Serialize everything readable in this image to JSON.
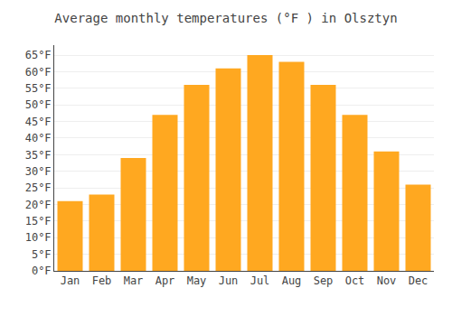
{
  "chart_data": {
    "type": "bar",
    "title": "Average monthly temperatures (°F ) in Olsztyn",
    "categories": [
      "Jan",
      "Feb",
      "Mar",
      "Apr",
      "May",
      "Jun",
      "Jul",
      "Aug",
      "Sep",
      "Oct",
      "Nov",
      "Dec"
    ],
    "values": [
      21,
      23,
      34,
      47,
      56,
      61,
      65,
      63,
      56,
      47,
      36,
      26
    ],
    "color": "#FFA820",
    "ylim": [
      0,
      68
    ],
    "yticks": [
      {
        "value": 0,
        "label": "0°F"
      },
      {
        "value": 5,
        "label": "5°F"
      },
      {
        "value": 10,
        "label": "10°F"
      },
      {
        "value": 15,
        "label": "15°F"
      },
      {
        "value": 20,
        "label": "20°F"
      },
      {
        "value": 25,
        "label": "25°F"
      },
      {
        "value": 30,
        "label": "30°F"
      },
      {
        "value": 35,
        "label": "35°F"
      },
      {
        "value": 40,
        "label": "40°F"
      },
      {
        "value": 45,
        "label": "45°F"
      },
      {
        "value": 50,
        "label": "50°F"
      },
      {
        "value": 55,
        "label": "55°F"
      },
      {
        "value": 60,
        "label": "60°F"
      },
      {
        "value": 65,
        "label": "65°F"
      }
    ],
    "grid": true
  }
}
